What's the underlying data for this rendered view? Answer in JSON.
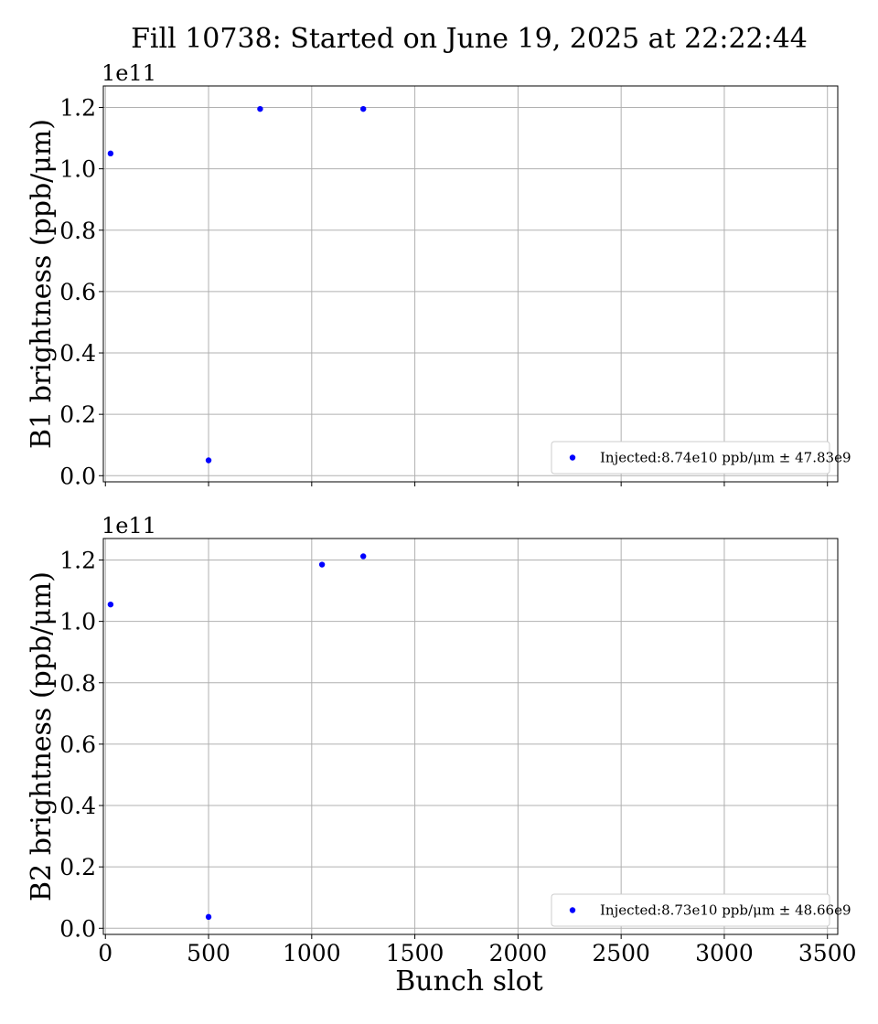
{
  "figure": {
    "title": "Fill 10738: Started on June 19, 2025 at 22:22:44",
    "xlabel": "Bunch slot"
  },
  "chart_data": [
    {
      "type": "scatter",
      "ylabel": "B1 brightness (ppb/μm)",
      "y_multiplier": "1e11",
      "xlim": [
        -10,
        3550
      ],
      "ylim": [
        -0.02,
        1.27
      ],
      "xticks": [
        0,
        500,
        1000,
        1500,
        2000,
        2500,
        3000,
        3500
      ],
      "yticks": [
        0.0,
        0.2,
        0.4,
        0.6,
        0.8,
        1.0,
        1.2
      ],
      "xtick_labels_visible": false,
      "grid": true,
      "legend_position": "lower right",
      "series": [
        {
          "name": "Injected:8.74e10 ppb/μm ± 47.83e9",
          "color": "#0000ff",
          "x": [
            25,
            500,
            750,
            1250
          ],
          "y": [
            1.05,
            0.05,
            1.195,
            1.195
          ]
        }
      ]
    },
    {
      "type": "scatter",
      "ylabel": "B2 brightness (ppb/μm)",
      "y_multiplier": "1e11",
      "xlim": [
        -10,
        3550
      ],
      "ylim": [
        -0.02,
        1.27
      ],
      "xticks": [
        0,
        500,
        1000,
        1500,
        2000,
        2500,
        3000,
        3500
      ],
      "yticks": [
        0.0,
        0.2,
        0.4,
        0.6,
        0.8,
        1.0,
        1.2
      ],
      "xtick_labels_visible": true,
      "grid": true,
      "legend_position": "lower right",
      "series": [
        {
          "name": "Injected:8.73e10 ppb/μm ± 48.66e9",
          "color": "#0000ff",
          "x": [
            25,
            500,
            1050,
            1250
          ],
          "y": [
            1.055,
            0.037,
            1.185,
            1.212
          ]
        }
      ]
    }
  ]
}
